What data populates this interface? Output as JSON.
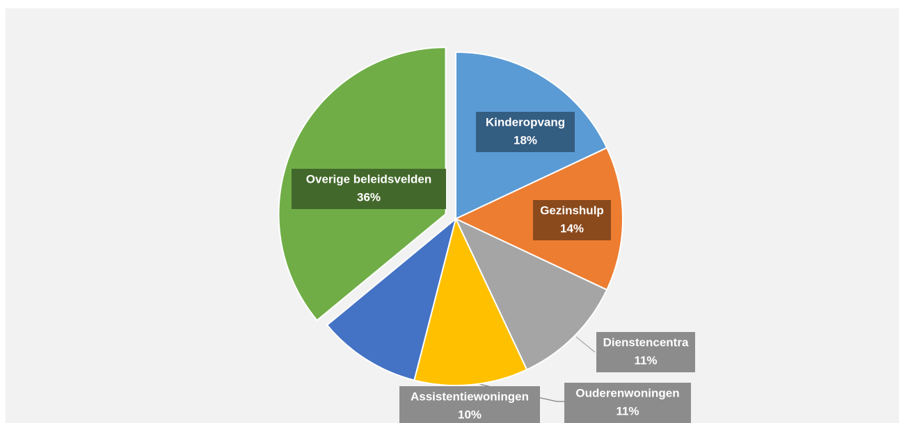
{
  "chart_data": {
    "type": "pie",
    "categories": [
      "Kinderopvang",
      "Gezinshulp",
      "Dienstencentra",
      "Ouderenwoningen",
      "Assistentiewoningen",
      "Overige beleidsvelden"
    ],
    "values": [
      18,
      14,
      11,
      11,
      10,
      36
    ],
    "value_labels": [
      "18%",
      "14%",
      "11%",
      "11%",
      "10%",
      "36%"
    ],
    "colors": [
      "#5b9bd5",
      "#ed7d31",
      "#a5a5a5",
      "#ffc000",
      "#4472c4",
      "#70ad47"
    ],
    "exploded": [
      5
    ]
  }
}
